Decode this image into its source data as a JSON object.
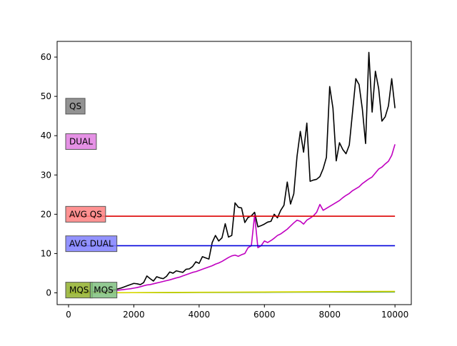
{
  "chart_data": {
    "type": "line",
    "title": "",
    "xlabel": "",
    "ylabel": "",
    "xlim": [
      -350,
      10500
    ],
    "ylim": [
      -3,
      64
    ],
    "xticks": [
      0,
      2000,
      4000,
      6000,
      8000,
      10000
    ],
    "yticks": [
      0,
      10,
      20,
      30,
      40,
      50,
      60
    ],
    "grid": false,
    "legend": "none",
    "series": [
      {
        "label": "QS",
        "color": "#000000",
        "x": [
          0,
          100,
          200,
          300,
          400,
          500,
          600,
          700,
          800,
          900,
          1000,
          1100,
          1200,
          1300,
          1400,
          1500,
          1600,
          1700,
          1800,
          1900,
          2000,
          2100,
          2200,
          2300,
          2400,
          2500,
          2600,
          2700,
          2800,
          2900,
          3000,
          3100,
          3200,
          3300,
          3400,
          3500,
          3600,
          3700,
          3800,
          3900,
          4000,
          4100,
          4200,
          4300,
          4400,
          4500,
          4600,
          4700,
          4800,
          4900,
          5000,
          5100,
          5200,
          5300,
          5400,
          5500,
          5600,
          5700,
          5800,
          5900,
          6000,
          6100,
          6200,
          6300,
          6400,
          6500,
          6600,
          6700,
          6800,
          6900,
          7000,
          7100,
          7200,
          7300,
          7400,
          7500,
          7600,
          7700,
          7800,
          7900,
          8000,
          8100,
          8200,
          8300,
          8400,
          8500,
          8600,
          8700,
          8800,
          8900,
          9000,
          9100,
          9200,
          9300,
          9400,
          9500,
          9600,
          9700,
          9800,
          9900,
          10000
        ],
        "y": [
          0,
          0.02,
          0.05,
          0.08,
          0.12,
          0.15,
          0.2,
          0.25,
          0.3,
          0.35,
          0.4,
          0.5,
          0.6,
          0.7,
          0.8,
          1.0,
          1.2,
          1.5,
          1.8,
          2.1,
          2.4,
          2.3,
          2.1,
          2.6,
          4.3,
          3.6,
          3.0,
          4.1,
          3.8,
          3.6,
          4.2,
          5.3,
          5.0,
          5.6,
          5.4,
          5.2,
          6.0,
          6.1,
          6.7,
          7.9,
          7.5,
          9.2,
          8.9,
          8.6,
          12.8,
          14.6,
          13.2,
          14.0,
          17.6,
          14.2,
          14.6,
          22.9,
          21.8,
          21.6,
          17.9,
          19.2,
          19.6,
          20.5,
          16.8,
          17.1,
          17.5,
          18.0,
          18.2,
          20.0,
          19.1,
          21.0,
          22.3,
          28.2,
          22.6,
          25.2,
          34.8,
          41.1,
          35.8,
          43.2,
          28.4,
          28.7,
          28.9,
          29.6,
          31.6,
          34.5,
          52.5,
          47.0,
          33.6,
          38.2,
          36.5,
          35.4,
          37.6,
          46.0,
          54.5,
          53.0,
          46.8,
          38.0,
          61.2,
          46.0,
          56.4,
          52.0,
          43.7,
          44.8,
          47.6,
          54.5,
          47.0
        ]
      },
      {
        "label": "DUAL",
        "color": "#c000c0",
        "x": [
          0,
          100,
          200,
          300,
          400,
          500,
          600,
          700,
          800,
          900,
          1000,
          1100,
          1200,
          1300,
          1400,
          1500,
          1600,
          1700,
          1800,
          1900,
          2000,
          2100,
          2200,
          2300,
          2400,
          2500,
          2600,
          2700,
          2800,
          2900,
          3000,
          3100,
          3200,
          3300,
          3400,
          3500,
          3600,
          3700,
          3800,
          3900,
          4000,
          4100,
          4200,
          4300,
          4400,
          4500,
          4600,
          4700,
          4800,
          4900,
          5000,
          5100,
          5200,
          5300,
          5400,
          5500,
          5600,
          5700,
          5800,
          5900,
          6000,
          6100,
          6200,
          6300,
          6400,
          6500,
          6600,
          6700,
          6800,
          6900,
          7000,
          7100,
          7200,
          7300,
          7400,
          7500,
          7600,
          7700,
          7800,
          7900,
          8000,
          8100,
          8200,
          8300,
          8400,
          8500,
          8600,
          8700,
          8800,
          8900,
          9000,
          9100,
          9200,
          9300,
          9400,
          9500,
          9600,
          9700,
          9800,
          9900,
          10000
        ],
        "y": [
          0,
          0.01,
          0.03,
          0.05,
          0.08,
          0.1,
          0.13,
          0.16,
          0.2,
          0.25,
          0.3,
          0.35,
          0.42,
          0.5,
          0.58,
          0.66,
          0.75,
          0.85,
          0.95,
          1.05,
          1.2,
          1.35,
          1.55,
          1.8,
          2.0,
          2.1,
          2.3,
          2.5,
          2.7,
          2.9,
          3.1,
          3.3,
          3.55,
          3.8,
          4.0,
          4.3,
          4.6,
          4.9,
          5.2,
          5.4,
          5.7,
          6.0,
          6.3,
          6.6,
          6.9,
          7.3,
          7.6,
          8.0,
          8.5,
          9.0,
          9.4,
          9.6,
          9.3,
          9.7,
          10.0,
          11.5,
          12.0,
          19.8,
          11.5,
          12.0,
          13.2,
          12.8,
          13.3,
          13.9,
          14.6,
          15.0,
          15.6,
          16.2,
          17.0,
          17.8,
          18.5,
          18.2,
          17.5,
          18.5,
          19.0,
          19.6,
          20.5,
          22.5,
          21.0,
          21.5,
          22.0,
          22.5,
          23.0,
          23.5,
          24.2,
          24.8,
          25.3,
          26.0,
          26.5,
          27.0,
          27.8,
          28.4,
          29.0,
          29.5,
          30.5,
          31.5,
          32.0,
          32.8,
          33.5,
          35.0,
          37.8
        ]
      },
      {
        "label": "AVG QS",
        "color": "#dd0000",
        "x": [
          0,
          10000
        ],
        "y": [
          19.5,
          19.5
        ]
      },
      {
        "label": "AVG DUAL",
        "color": "#0000dd",
        "x": [
          0,
          10000
        ],
        "y": [
          12.0,
          12.0
        ]
      },
      {
        "label": "MQS",
        "color": "#2e8b2e",
        "x": [
          0,
          1000,
          2000,
          3000,
          4000,
          5000,
          6000,
          7000,
          8000,
          9000,
          10000
        ],
        "y": [
          0,
          0.02,
          0.04,
          0.06,
          0.1,
          0.12,
          0.15,
          0.18,
          0.2,
          0.22,
          0.25
        ]
      },
      {
        "label": "MQS",
        "color": "#d8d800",
        "x": [
          0,
          1000,
          2000,
          3000,
          4000,
          5000,
          6000,
          7000,
          8000,
          9000,
          10000
        ],
        "y": [
          0,
          0.03,
          0.06,
          0.1,
          0.14,
          0.18,
          0.22,
          0.26,
          0.3,
          0.34,
          0.38
        ]
      }
    ],
    "annotations": [
      {
        "text": "QS",
        "x": 0,
        "y": 47.5,
        "bg": "#7f7f7f"
      },
      {
        "text": "DUAL",
        "x": 0,
        "y": 38.5,
        "bg": "#e07ee0"
      },
      {
        "text": "AVG QS",
        "x": 0,
        "y": 20.0,
        "bg": "#ff7f7f"
      },
      {
        "text": "AVG DUAL",
        "x": 0,
        "y": 12.5,
        "bg": "#7f7fff"
      },
      {
        "text": "MQS",
        "x": 0,
        "y": 0.7,
        "bg": "#92b02c"
      },
      {
        "text": "MQS",
        "x": 750,
        "y": 0.7,
        "bg": "#7fbf7f"
      }
    ]
  }
}
